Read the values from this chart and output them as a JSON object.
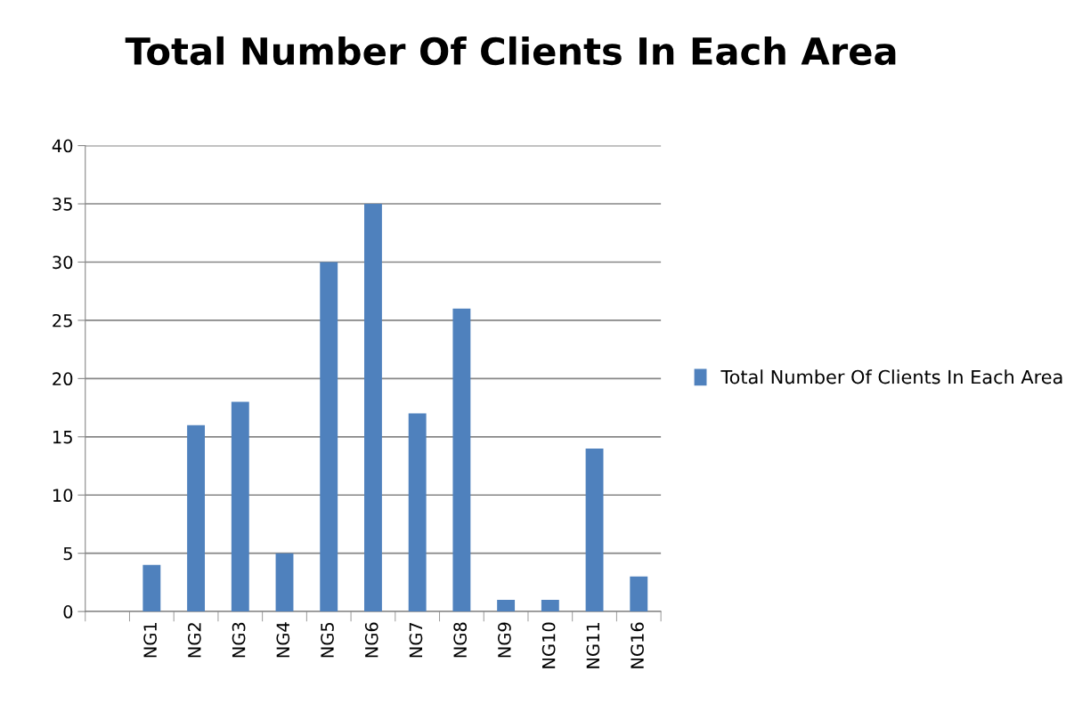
{
  "chart_data": {
    "type": "bar",
    "title": "Total Number Of Clients In Each Area",
    "categories": [
      null,
      "NG1",
      "NG2",
      "NG3",
      "NG4",
      "NG5",
      "NG6",
      "NG7",
      "NG8",
      "NG9",
      "NG10",
      "NG11",
      "NG16"
    ],
    "series": [
      {
        "name": "Total Number Of Clients In Each Area",
        "color": "#4f81bd",
        "values": [
          null,
          4,
          16,
          18,
          5,
          30,
          35,
          17,
          26,
          1,
          1,
          14,
          3
        ]
      }
    ],
    "ylim": [
      0,
      40
    ],
    "yticks": [
      0,
      5,
      10,
      15,
      20,
      25,
      30,
      35,
      40
    ],
    "grid": "y",
    "legend": "right"
  }
}
